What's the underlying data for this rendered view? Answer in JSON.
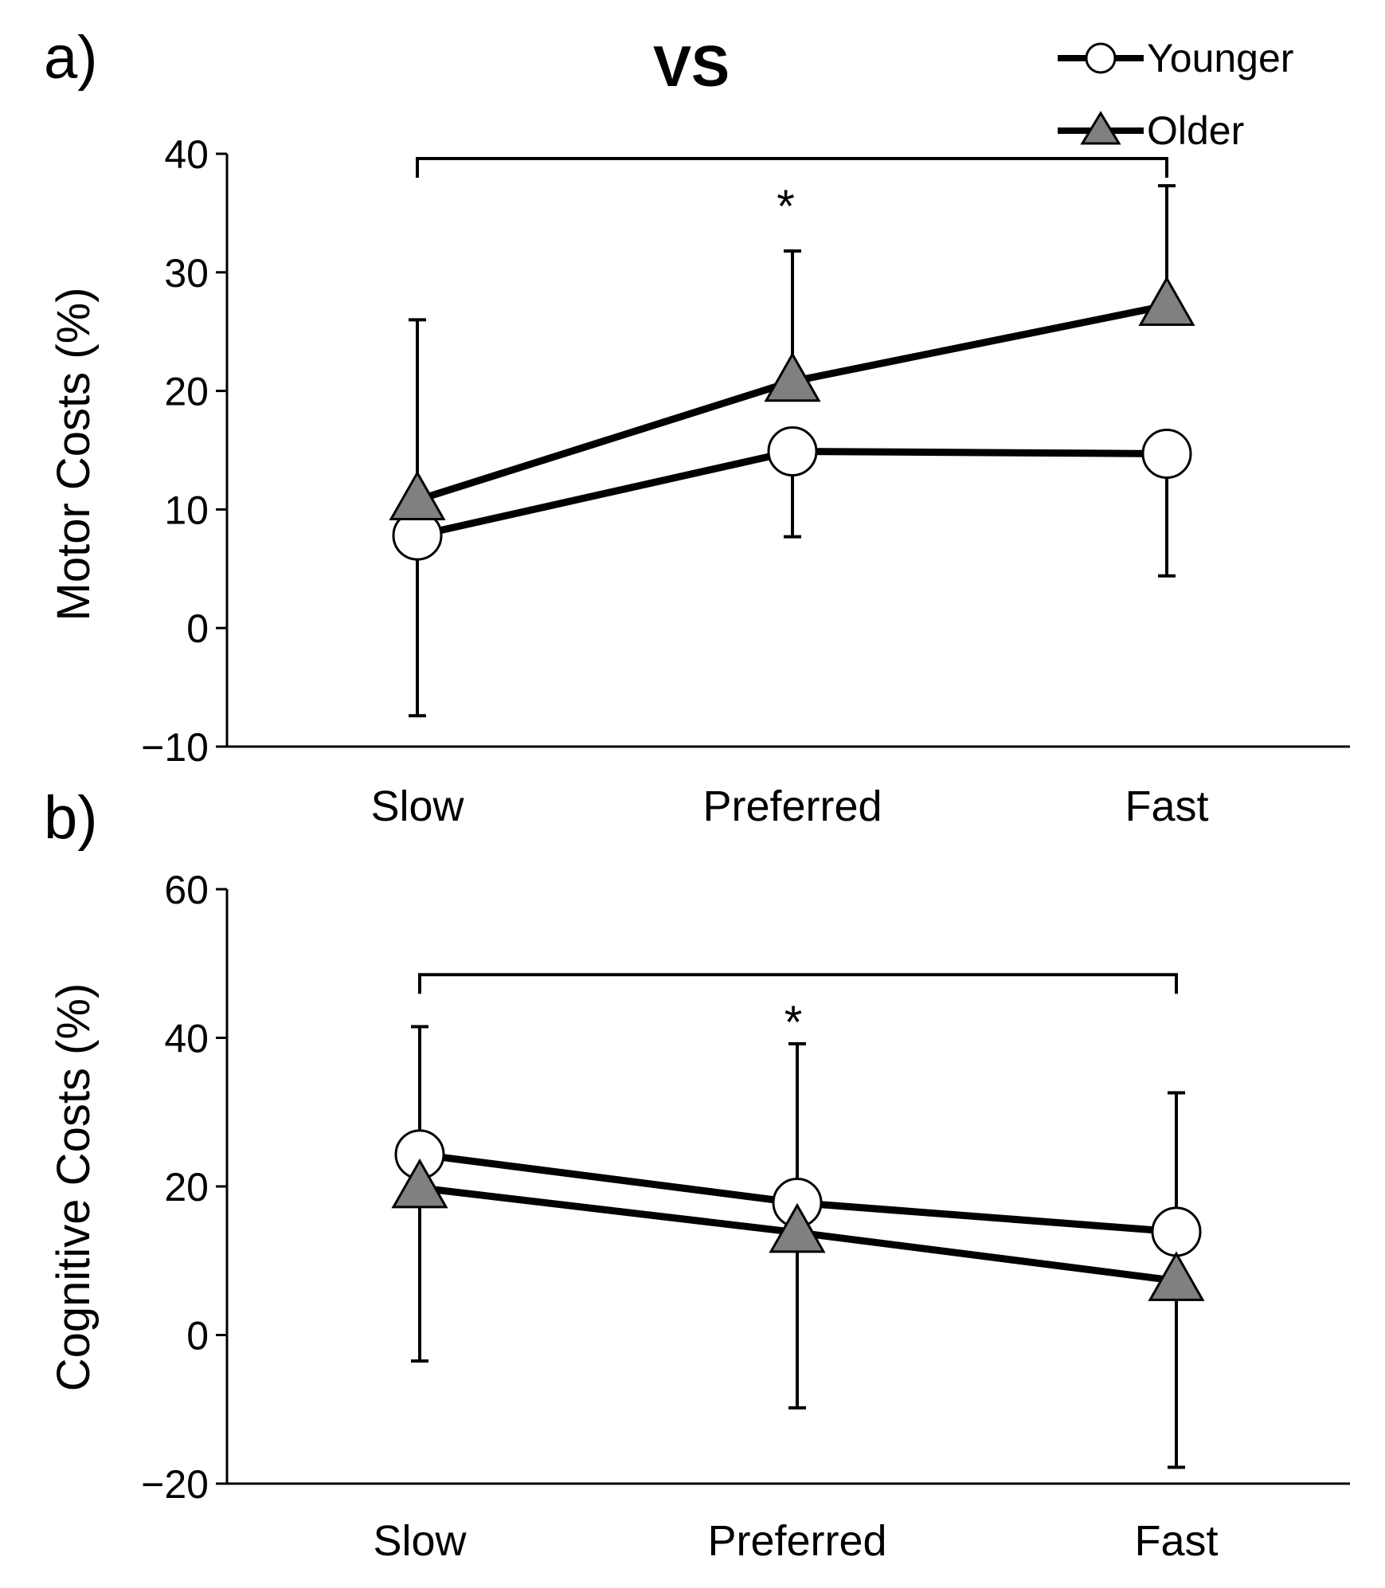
{
  "title": "VS",
  "legend": {
    "placement": "top-right",
    "entries": [
      {
        "name": "Younger",
        "marker": "open-circle"
      },
      {
        "name": "Older",
        "marker": "gray-triangle"
      }
    ]
  },
  "colors": {
    "line": "#000000",
    "older_marker": "#808080",
    "younger_marker": "#ffffff"
  },
  "chart_data": [
    {
      "type": "line",
      "panel_label": "a)",
      "title": "VS",
      "ylabel": "Motor Costs (%)",
      "xlabel": "",
      "categories": [
        "Slow",
        "Preferred",
        "Fast"
      ],
      "ylim": [
        -10,
        40
      ],
      "yticks": [
        -10,
        0,
        10,
        20,
        30,
        40
      ],
      "series": [
        {
          "name": "Younger",
          "values": [
            7.8,
            14.9,
            14.7
          ],
          "err_low": [
            -7.4,
            7.7,
            4.4
          ],
          "err_high": null
        },
        {
          "name": "Older",
          "values": [
            10.8,
            20.8,
            27.2
          ],
          "err_low": null,
          "err_high": [
            26.0,
            31.8,
            37.3
          ]
        }
      ],
      "significance": {
        "from": "Slow",
        "to": "Fast",
        "y": 39.6,
        "label": "*"
      }
    },
    {
      "type": "line",
      "panel_label": "b)",
      "title": "",
      "ylabel": "Cognitive Costs (%)",
      "xlabel": "",
      "categories": [
        "Slow",
        "Preferred",
        "Fast"
      ],
      "ylim": [
        -20,
        60
      ],
      "yticks": [
        -20,
        0,
        20,
        40,
        60
      ],
      "series": [
        {
          "name": "Younger",
          "values": [
            24.3,
            17.8,
            13.9
          ],
          "err_low": null,
          "err_high": [
            41.5,
            39.2,
            32.6
          ]
        },
        {
          "name": "Older",
          "values": [
            19.8,
            13.8,
            7.3
          ],
          "err_low": [
            -3.5,
            -9.8,
            -17.8
          ],
          "err_high": null
        }
      ],
      "significance": {
        "from": "Slow",
        "to": "Fast",
        "y": 48.5,
        "label": "*"
      }
    }
  ]
}
